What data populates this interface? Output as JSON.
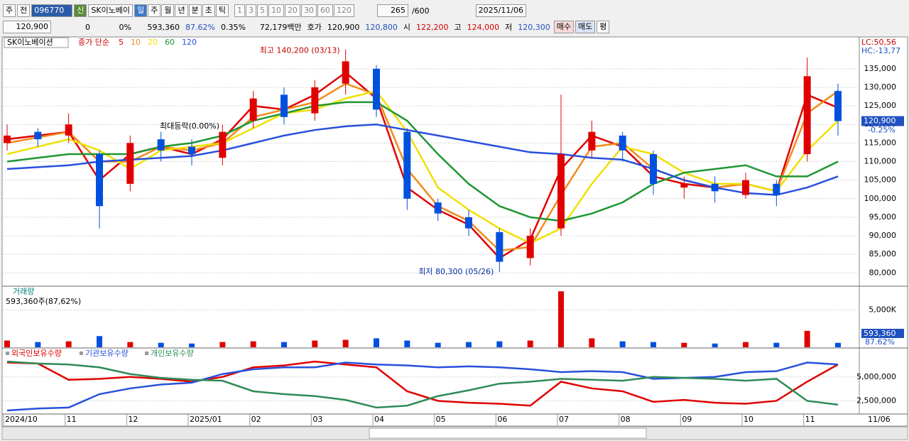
{
  "toolbar": {
    "mode": "주",
    "scope": "전",
    "code": "096770",
    "name": "SK이노베이",
    "new_badge": "신",
    "periods": [
      "일",
      "주",
      "월",
      "년",
      "분",
      "초",
      "틱"
    ],
    "intervals": [
      "1",
      "3",
      "5",
      "10",
      "20",
      "30",
      "60",
      "120"
    ],
    "count": "265",
    "max": "/600",
    "date": "2025/11/06"
  },
  "info_bar": {
    "price": "120,900",
    "change": "0",
    "change_rate": "0%",
    "volume": "593,360",
    "volume_rate": "87.62%",
    "turnover": "0.35%",
    "amount": "72,179백만",
    "quote_label": "호가",
    "ask": "120,900",
    "bid": "120,800",
    "open_label": "시",
    "open": "122,200",
    "high_label": "고",
    "high": "124,000",
    "low_label": "저",
    "low": "120,300",
    "buy": "매수",
    "sell": "매도",
    "avg": "평"
  },
  "chart_data": [
    {
      "type": "candlestick",
      "name": "SK이노베이션",
      "legend_title": "종가 단순",
      "up_color": "#e00000",
      "down_color": "#0050e0",
      "open": [
        115000,
        118000,
        117000,
        112000,
        104000,
        116000,
        114000,
        111000,
        121000,
        128000,
        123000,
        131000,
        135000,
        118000,
        99000,
        95000,
        91000,
        84000,
        92000,
        113000,
        117000,
        112000,
        103000,
        104000,
        101000,
        104000,
        112000,
        129000
      ],
      "high": [
        120000,
        119000,
        123000,
        113000,
        117000,
        118000,
        116000,
        120000,
        129000,
        130000,
        132000,
        140200,
        136000,
        119000,
        100000,
        97000,
        92000,
        92000,
        128000,
        121000,
        118000,
        113000,
        106000,
        106000,
        107000,
        105000,
        138000,
        131000
      ],
      "low": [
        113000,
        114000,
        115000,
        92000,
        102000,
        110000,
        109000,
        109000,
        119000,
        120000,
        121000,
        128000,
        122000,
        97000,
        94000,
        90000,
        80300,
        82000,
        90000,
        111000,
        110000,
        101000,
        100000,
        99000,
        100000,
        98000,
        110000,
        117000
      ],
      "close": [
        117000,
        116000,
        120000,
        98000,
        115000,
        113000,
        112000,
        118000,
        127000,
        122000,
        130000,
        137000,
        124000,
        100000,
        96000,
        92000,
        83000,
        90000,
        112000,
        118000,
        113000,
        104000,
        104000,
        102000,
        105000,
        101000,
        133000,
        120900
      ],
      "series": [
        {
          "name": "5",
          "color": "#e00000",
          "values": [
            116000,
            117000,
            118000,
            105000,
            112000,
            114000,
            112000,
            116000,
            125000,
            124000,
            128000,
            134000,
            127000,
            103000,
            97000,
            93000,
            84000,
            89000,
            108000,
            117000,
            114000,
            106000,
            104000,
            103000,
            104000,
            102000,
            128000,
            124500
          ]
        },
        {
          "name": "10",
          "color": "#f08c1c",
          "values": [
            115000,
            116500,
            118000,
            110000,
            110000,
            114000,
            113000,
            115000,
            122000,
            124000,
            126000,
            131000,
            128000,
            108000,
            98000,
            94000,
            86000,
            87000,
            101000,
            114000,
            115000,
            108000,
            105000,
            103000,
            104000,
            102000,
            123000,
            129000
          ]
        },
        {
          "name": "20",
          "color": "#f0e000",
          "values": [
            112000,
            114000,
            116000,
            113000,
            108000,
            113000,
            114000,
            115000,
            119000,
            123000,
            124000,
            127000,
            129000,
            118000,
            103000,
            97000,
            92000,
            88000,
            92000,
            104000,
            114000,
            112000,
            107000,
            104000,
            104000,
            102000,
            113000,
            121000
          ]
        },
        {
          "name": "60",
          "color": "#1e9632",
          "values": [
            110000,
            111000,
            112000,
            112000,
            112000,
            114000,
            115000,
            117000,
            121000,
            123000,
            125000,
            126000,
            126000,
            121000,
            112000,
            104000,
            98000,
            95000,
            94000,
            96000,
            99000,
            104000,
            107000,
            108000,
            109000,
            106000,
            106000,
            110000
          ]
        },
        {
          "name": "120",
          "color": "#2850dc",
          "values": [
            108000,
            108500,
            109000,
            110000,
            110500,
            111000,
            111500,
            113000,
            115000,
            117000,
            118500,
            119500,
            120000,
            118500,
            117000,
            115500,
            114000,
            112500,
            112000,
            111000,
            110500,
            108000,
            105000,
            103000,
            101500,
            101000,
            103000,
            106000
          ]
        }
      ],
      "annotations": {
        "high": "최고 140,200 (03/13)",
        "low": "최저 80,300 (05/26)",
        "range": "최대등락(0.00%)",
        "lc": "LC:50,56",
        "hc": "HC:-13,77",
        "last": "120,900",
        "last_change": "-0.25%"
      },
      "ylim": [
        77000,
        143000
      ],
      "yticks": [
        {
          "value": 80000,
          "label": "80,000"
        },
        {
          "value": 85000,
          "label": "85,000"
        },
        {
          "value": 90000,
          "label": "90,000"
        },
        {
          "value": 95000,
          "label": "95,000"
        },
        {
          "value": 100000,
          "label": "100,000"
        },
        {
          "value": 105000,
          "label": "105,000"
        },
        {
          "value": 110000,
          "label": "110,000"
        },
        {
          "value": 115000,
          "label": "115,000"
        },
        {
          "value": 120000,
          "label": "120,000"
        },
        {
          "value": 125000,
          "label": "125,000"
        },
        {
          "value": 130000,
          "label": "130,000"
        },
        {
          "value": 135000,
          "label": "135,000"
        }
      ],
      "grid": true
    },
    {
      "type": "bar",
      "title": "거래량",
      "subtitle": "593,360주(87,62%)",
      "last_label": "593,360",
      "last_rate": "87.62%",
      "values": [
        900000,
        700000,
        800000,
        1500000,
        700000,
        600000,
        500000,
        700000,
        800000,
        700000,
        900000,
        1000000,
        1200000,
        900000,
        600000,
        700000,
        800000,
        900000,
        7500000,
        1200000,
        800000,
        700000,
        600000,
        500000,
        700000,
        600000,
        2200000,
        593360
      ],
      "ylim": [
        0,
        8000000
      ],
      "yticks": [
        {
          "value": 5000000,
          "label": "5,000K"
        }
      ],
      "grid": true
    },
    {
      "type": "line",
      "categories": [
        "2024/10",
        null,
        "11",
        null,
        "12",
        null,
        "2025/01",
        null,
        "02",
        null,
        "03",
        null,
        "04",
        null,
        "05",
        null,
        "06",
        null,
        "07",
        null,
        "08",
        null,
        "09",
        null,
        "10",
        null,
        "11",
        null
      ],
      "last_date": "11/06",
      "series": [
        {
          "name": "외국인보유수량",
          "color": "#e00000",
          "values": [
            6500000,
            6400000,
            4700000,
            4800000,
            5000000,
            4800000,
            4500000,
            5000000,
            6000000,
            6200000,
            6600000,
            6300000,
            6000000,
            3500000,
            2500000,
            2300000,
            2200000,
            2000000,
            4500000,
            3800000,
            3500000,
            2400000,
            2600000,
            2300000,
            2200000,
            2500000,
            4500000,
            6300000
          ]
        },
        {
          "name": "기관보유수량",
          "color": "#2850dc",
          "values": [
            1500000,
            1700000,
            1800000,
            3200000,
            3800000,
            4200000,
            4400000,
            5300000,
            5800000,
            6000000,
            6000000,
            6500000,
            6300000,
            6200000,
            6000000,
            6100000,
            6000000,
            5800000,
            5500000,
            5600000,
            5500000,
            4800000,
            4900000,
            5000000,
            5500000,
            5600000,
            6500000,
            6300000
          ]
        },
        {
          "name": "개인보유수량",
          "color": "#2e8b57",
          "values": [
            6600000,
            6400000,
            6300000,
            6000000,
            5300000,
            4900000,
            4700000,
            4600000,
            3500000,
            3200000,
            3000000,
            2600000,
            1800000,
            2000000,
            3000000,
            3600000,
            4300000,
            4500000,
            4800000,
            4700000,
            4600000,
            5000000,
            4900000,
            4800000,
            4600000,
            4800000,
            2500000,
            2100000
          ]
        }
      ],
      "ylim": [
        1200000,
        7800000
      ],
      "yticks": [
        {
          "value": 2500000,
          "label": "2,500,000"
        },
        {
          "value": 5000000,
          "label": "5,000,000"
        }
      ],
      "grid": true
    }
  ]
}
